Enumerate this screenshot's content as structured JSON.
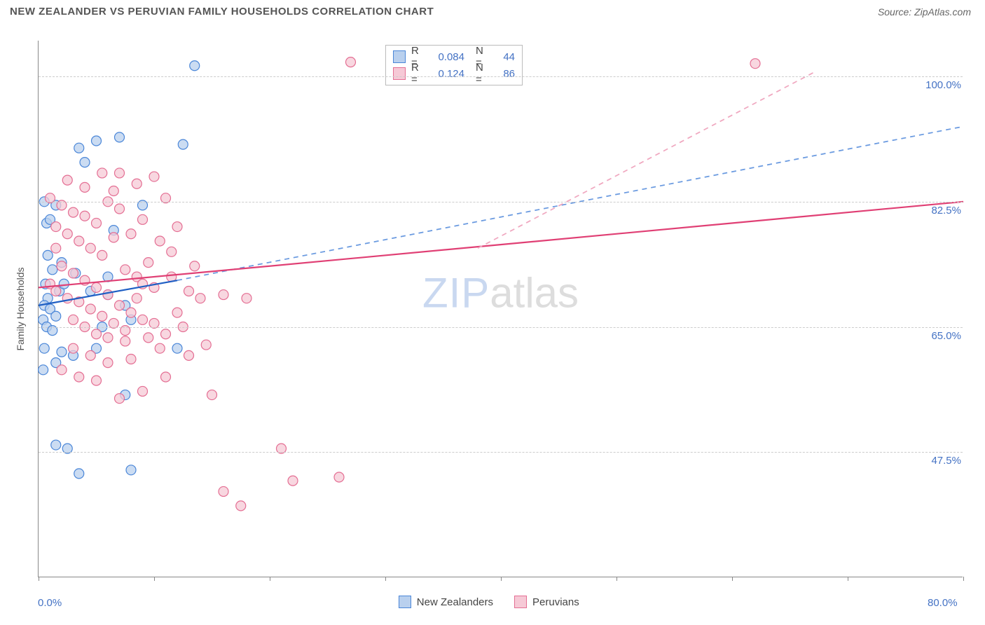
{
  "header": {
    "title": "NEW ZEALANDER VS PERUVIAN FAMILY HOUSEHOLDS CORRELATION CHART",
    "source": "Source: ZipAtlas.com"
  },
  "chart": {
    "type": "scatter",
    "y_axis_title": "Family Households",
    "xlim": [
      0.0,
      80.0
    ],
    "ylim": [
      30.0,
      105.0
    ],
    "x_tick_positions": [
      0,
      10,
      20,
      30,
      40,
      50,
      60,
      70,
      80
    ],
    "x_label_min": "0.0%",
    "x_label_max": "80.0%",
    "y_ticks": [
      {
        "value": 47.5,
        "label": "47.5%"
      },
      {
        "value": 65.0,
        "label": "65.0%"
      },
      {
        "value": 82.5,
        "label": "82.5%"
      },
      {
        "value": 100.0,
        "label": "100.0%"
      }
    ],
    "grid_color": "#cccccc",
    "axis_color": "#888888",
    "background_color": "#ffffff",
    "watermark": {
      "part1": "ZIP",
      "part2": "atlas",
      "color1": "#c9d8f0",
      "color2": "#dddddd"
    },
    "series": [
      {
        "name": "New Zealanders",
        "marker_fill": "#b9d0ee",
        "marker_stroke": "#4a86d8",
        "marker_radius": 7,
        "line_solid_color": "#1f5fc4",
        "line_dashed_color": "#6a9ae0",
        "line_width": 2.2,
        "trend_solid": {
          "x1": 0,
          "y1": 68.0,
          "x2": 12,
          "y2": 71.5
        },
        "trend_dashed": {
          "x1": 12,
          "y1": 71.5,
          "x2": 80,
          "y2": 93.0
        },
        "R": "0.084",
        "N": "44",
        "points": [
          {
            "x": 0.5,
            "y": 82.5
          },
          {
            "x": 0.7,
            "y": 79.5
          },
          {
            "x": 1.5,
            "y": 82.0
          },
          {
            "x": 1.0,
            "y": 80.0
          },
          {
            "x": 1.2,
            "y": 73.0
          },
          {
            "x": 0.6,
            "y": 71.0
          },
          {
            "x": 1.8,
            "y": 70.0
          },
          {
            "x": 2.2,
            "y": 71.0
          },
          {
            "x": 0.8,
            "y": 69.0
          },
          {
            "x": 0.5,
            "y": 68.0
          },
          {
            "x": 1.0,
            "y": 67.5
          },
          {
            "x": 1.5,
            "y": 66.5
          },
          {
            "x": 0.4,
            "y": 66.0
          },
          {
            "x": 0.7,
            "y": 65.0
          },
          {
            "x": 1.2,
            "y": 64.5
          },
          {
            "x": 0.5,
            "y": 62.0
          },
          {
            "x": 2.0,
            "y": 61.5
          },
          {
            "x": 3.5,
            "y": 90.0
          },
          {
            "x": 5.0,
            "y": 91.0
          },
          {
            "x": 7.0,
            "y": 91.5
          },
          {
            "x": 4.0,
            "y": 88.0
          },
          {
            "x": 9.0,
            "y": 82.0
          },
          {
            "x": 6.5,
            "y": 78.5
          },
          {
            "x": 4.5,
            "y": 70.0
          },
          {
            "x": 6.0,
            "y": 69.5
          },
          {
            "x": 7.5,
            "y": 68.0
          },
          {
            "x": 5.5,
            "y": 65.0
          },
          {
            "x": 8.0,
            "y": 66.0
          },
          {
            "x": 5.0,
            "y": 62.0
          },
          {
            "x": 3.0,
            "y": 61.0
          },
          {
            "x": 12.5,
            "y": 90.5
          },
          {
            "x": 12.0,
            "y": 62.0
          },
          {
            "x": 7.5,
            "y": 55.5
          },
          {
            "x": 1.5,
            "y": 48.5
          },
          {
            "x": 2.5,
            "y": 48.0
          },
          {
            "x": 3.5,
            "y": 44.5
          },
          {
            "x": 8.0,
            "y": 45.0
          },
          {
            "x": 13.5,
            "y": 101.5
          },
          {
            "x": 0.8,
            "y": 75.0
          },
          {
            "x": 2.0,
            "y": 74.0
          },
          {
            "x": 3.2,
            "y": 72.5
          },
          {
            "x": 1.5,
            "y": 60.0
          },
          {
            "x": 0.4,
            "y": 59.0
          },
          {
            "x": 6.0,
            "y": 72.0
          }
        ]
      },
      {
        "name": "Peruvians",
        "marker_fill": "#f6c9d6",
        "marker_stroke": "#e46e93",
        "marker_radius": 7,
        "line_solid_color": "#e03f74",
        "line_dashed_color": "#f0a8c0",
        "line_width": 2.2,
        "trend_solid": {
          "x1": 0,
          "y1": 70.5,
          "x2": 80,
          "y2": 82.5
        },
        "trend_dashed": {
          "x1": 38,
          "y1": 76.0,
          "x2": 67,
          "y2": 100.5
        },
        "R": "0.124",
        "N": "86",
        "points": [
          {
            "x": 1.0,
            "y": 83.0
          },
          {
            "x": 2.0,
            "y": 82.0
          },
          {
            "x": 3.0,
            "y": 81.0
          },
          {
            "x": 1.5,
            "y": 79.0
          },
          {
            "x": 2.5,
            "y": 78.0
          },
          {
            "x": 4.0,
            "y": 80.5
          },
          {
            "x": 5.0,
            "y": 79.5
          },
          {
            "x": 6.0,
            "y": 82.5
          },
          {
            "x": 7.0,
            "y": 81.5
          },
          {
            "x": 3.5,
            "y": 77.0
          },
          {
            "x": 4.5,
            "y": 76.0
          },
          {
            "x": 5.5,
            "y": 75.0
          },
          {
            "x": 6.5,
            "y": 77.5
          },
          {
            "x": 8.0,
            "y": 78.0
          },
          {
            "x": 9.0,
            "y": 80.0
          },
          {
            "x": 7.5,
            "y": 73.0
          },
          {
            "x": 8.5,
            "y": 72.0
          },
          {
            "x": 2.0,
            "y": 73.5
          },
          {
            "x": 3.0,
            "y": 72.5
          },
          {
            "x": 4.0,
            "y": 71.5
          },
          {
            "x": 1.0,
            "y": 71.0
          },
          {
            "x": 1.5,
            "y": 70.0
          },
          {
            "x": 2.5,
            "y": 69.0
          },
          {
            "x": 3.5,
            "y": 68.5
          },
          {
            "x": 5.0,
            "y": 70.5
          },
          {
            "x": 6.0,
            "y": 69.5
          },
          {
            "x": 7.0,
            "y": 68.0
          },
          {
            "x": 8.0,
            "y": 67.0
          },
          {
            "x": 9.0,
            "y": 66.0
          },
          {
            "x": 4.0,
            "y": 65.0
          },
          {
            "x": 5.0,
            "y": 64.0
          },
          {
            "x": 6.0,
            "y": 63.5
          },
          {
            "x": 7.5,
            "y": 63.0
          },
          {
            "x": 9.5,
            "y": 63.5
          },
          {
            "x": 3.0,
            "y": 62.0
          },
          {
            "x": 4.5,
            "y": 61.0
          },
          {
            "x": 6.0,
            "y": 60.0
          },
          {
            "x": 8.0,
            "y": 60.5
          },
          {
            "x": 2.0,
            "y": 59.0
          },
          {
            "x": 3.5,
            "y": 58.0
          },
          {
            "x": 10.0,
            "y": 86.0
          },
          {
            "x": 11.0,
            "y": 83.0
          },
          {
            "x": 12.0,
            "y": 79.0
          },
          {
            "x": 11.5,
            "y": 72.0
          },
          {
            "x": 13.0,
            "y": 70.0
          },
          {
            "x": 14.0,
            "y": 69.0
          },
          {
            "x": 12.5,
            "y": 65.0
          },
          {
            "x": 10.5,
            "y": 62.0
          },
          {
            "x": 11.0,
            "y": 58.0
          },
          {
            "x": 9.0,
            "y": 56.0
          },
          {
            "x": 7.0,
            "y": 55.0
          },
          {
            "x": 5.0,
            "y": 57.5
          },
          {
            "x": 16.0,
            "y": 69.5
          },
          {
            "x": 18.0,
            "y": 69.0
          },
          {
            "x": 15.0,
            "y": 55.5
          },
          {
            "x": 16.0,
            "y": 42.0
          },
          {
            "x": 17.5,
            "y": 40.0
          },
          {
            "x": 21.0,
            "y": 48.0
          },
          {
            "x": 22.0,
            "y": 43.5
          },
          {
            "x": 26.0,
            "y": 44.0
          },
          {
            "x": 27.0,
            "y": 102.0
          },
          {
            "x": 62.0,
            "y": 101.8
          },
          {
            "x": 10.5,
            "y": 77.0
          },
          {
            "x": 11.5,
            "y": 75.5
          },
          {
            "x": 13.5,
            "y": 73.5
          },
          {
            "x": 5.5,
            "y": 86.5
          },
          {
            "x": 6.5,
            "y": 84.0
          },
          {
            "x": 4.0,
            "y": 84.5
          },
          {
            "x": 2.5,
            "y": 85.5
          },
          {
            "x": 1.5,
            "y": 76.0
          },
          {
            "x": 9.5,
            "y": 74.0
          },
          {
            "x": 10.0,
            "y": 70.5
          },
          {
            "x": 12.0,
            "y": 67.0
          },
          {
            "x": 13.0,
            "y": 61.0
          },
          {
            "x": 14.5,
            "y": 62.5
          },
          {
            "x": 3.0,
            "y": 66.0
          },
          {
            "x": 4.5,
            "y": 67.5
          },
          {
            "x": 5.5,
            "y": 66.5
          },
          {
            "x": 6.5,
            "y": 65.5
          },
          {
            "x": 7.5,
            "y": 64.5
          },
          {
            "x": 8.5,
            "y": 69.0
          },
          {
            "x": 9.0,
            "y": 71.0
          },
          {
            "x": 10.0,
            "y": 65.5
          },
          {
            "x": 11.0,
            "y": 64.0
          },
          {
            "x": 7.0,
            "y": 86.5
          },
          {
            "x": 8.5,
            "y": 85.0
          }
        ]
      }
    ],
    "legend_bottom": [
      {
        "label": "New Zealanders",
        "fill": "#b9d0ee",
        "stroke": "#4a86d8"
      },
      {
        "label": "Peruvians",
        "fill": "#f6c9d6",
        "stroke": "#e46e93"
      }
    ]
  }
}
